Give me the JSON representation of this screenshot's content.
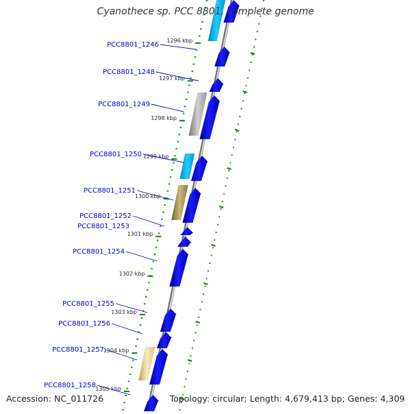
{
  "title": "Cyanothece sp. PCC 8801, complete genome",
  "footer": {
    "accession": "Accession: NC_011726",
    "topology": "Topology: circular; Length: 4,679,413 bp; Genes: 4,309"
  },
  "colors": {
    "gene_forward": "#0000ee",
    "gene_cyan": "#00aadd",
    "gene_gray": "#a8a8a8",
    "gene_olive": "#a89a5a",
    "gene_yellow": "#e8d898",
    "label": "#0000cc",
    "tick": "#228822",
    "backbone": "#777777"
  },
  "kbp_ticks": [
    "1296 kbp",
    "1297 kbp",
    "1298 kbp",
    "1299 kbp",
    "1300 kbp",
    "1301 kbp",
    "1302 kbp",
    "1303 kbp",
    "1304 kbp",
    "1305 kbp"
  ],
  "genes": [
    {
      "id": "PCC8801_1246"
    },
    {
      "id": "PCC8801_1248"
    },
    {
      "id": "PCC8801_1249"
    },
    {
      "id": "PCC8801_1250"
    },
    {
      "id": "PCC8801_1251"
    },
    {
      "id": "PCC8801_1252"
    },
    {
      "id": "PCC8801_1253"
    },
    {
      "id": "PCC8801_1254"
    },
    {
      "id": "PCC8801_1255"
    },
    {
      "id": "PCC8801_1256"
    },
    {
      "id": "PCC8801_1257"
    },
    {
      "id": "PCC8801_1258"
    }
  ]
}
